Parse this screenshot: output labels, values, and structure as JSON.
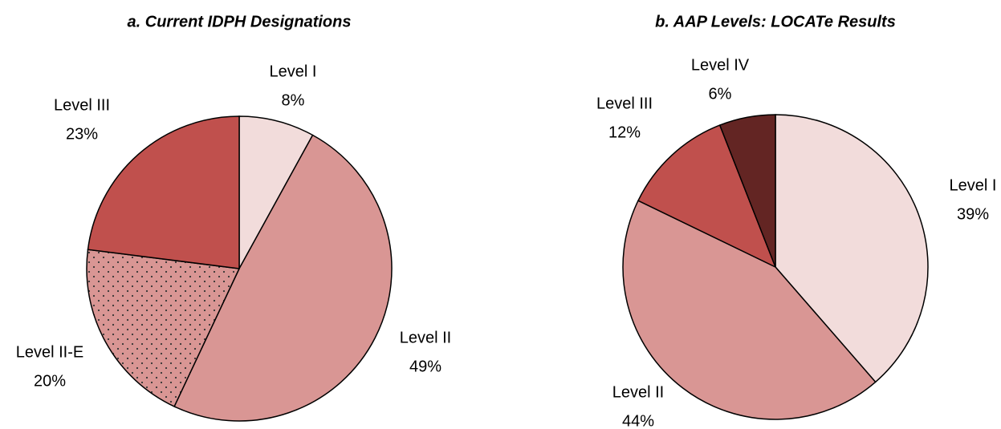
{
  "chart_data": [
    {
      "type": "pie",
      "title": "a. Current IDPH Designations",
      "categories": [
        "Level I",
        "Level II",
        "Level II-E",
        "Level III"
      ],
      "values": [
        8,
        49,
        20,
        23
      ],
      "value_labels": [
        "8%",
        "49%",
        "20%",
        "23%"
      ],
      "colors": [
        "#f2dcdb",
        "#d99694",
        "#d99694",
        "#c0504d"
      ],
      "patterns": [
        null,
        null,
        "dots",
        null
      ]
    },
    {
      "type": "pie",
      "title": "b.  AAP Levels: LOCATe Results",
      "categories": [
        "Level I",
        "Level II",
        "Level III",
        "Level IV"
      ],
      "values": [
        39,
        44,
        12,
        6
      ],
      "value_labels": [
        "39%",
        "44%",
        "12%",
        "6%"
      ],
      "colors": [
        "#f2dcdb",
        "#d99694",
        "#c0504d",
        "#632523"
      ],
      "patterns": [
        null,
        null,
        null,
        null
      ]
    }
  ]
}
